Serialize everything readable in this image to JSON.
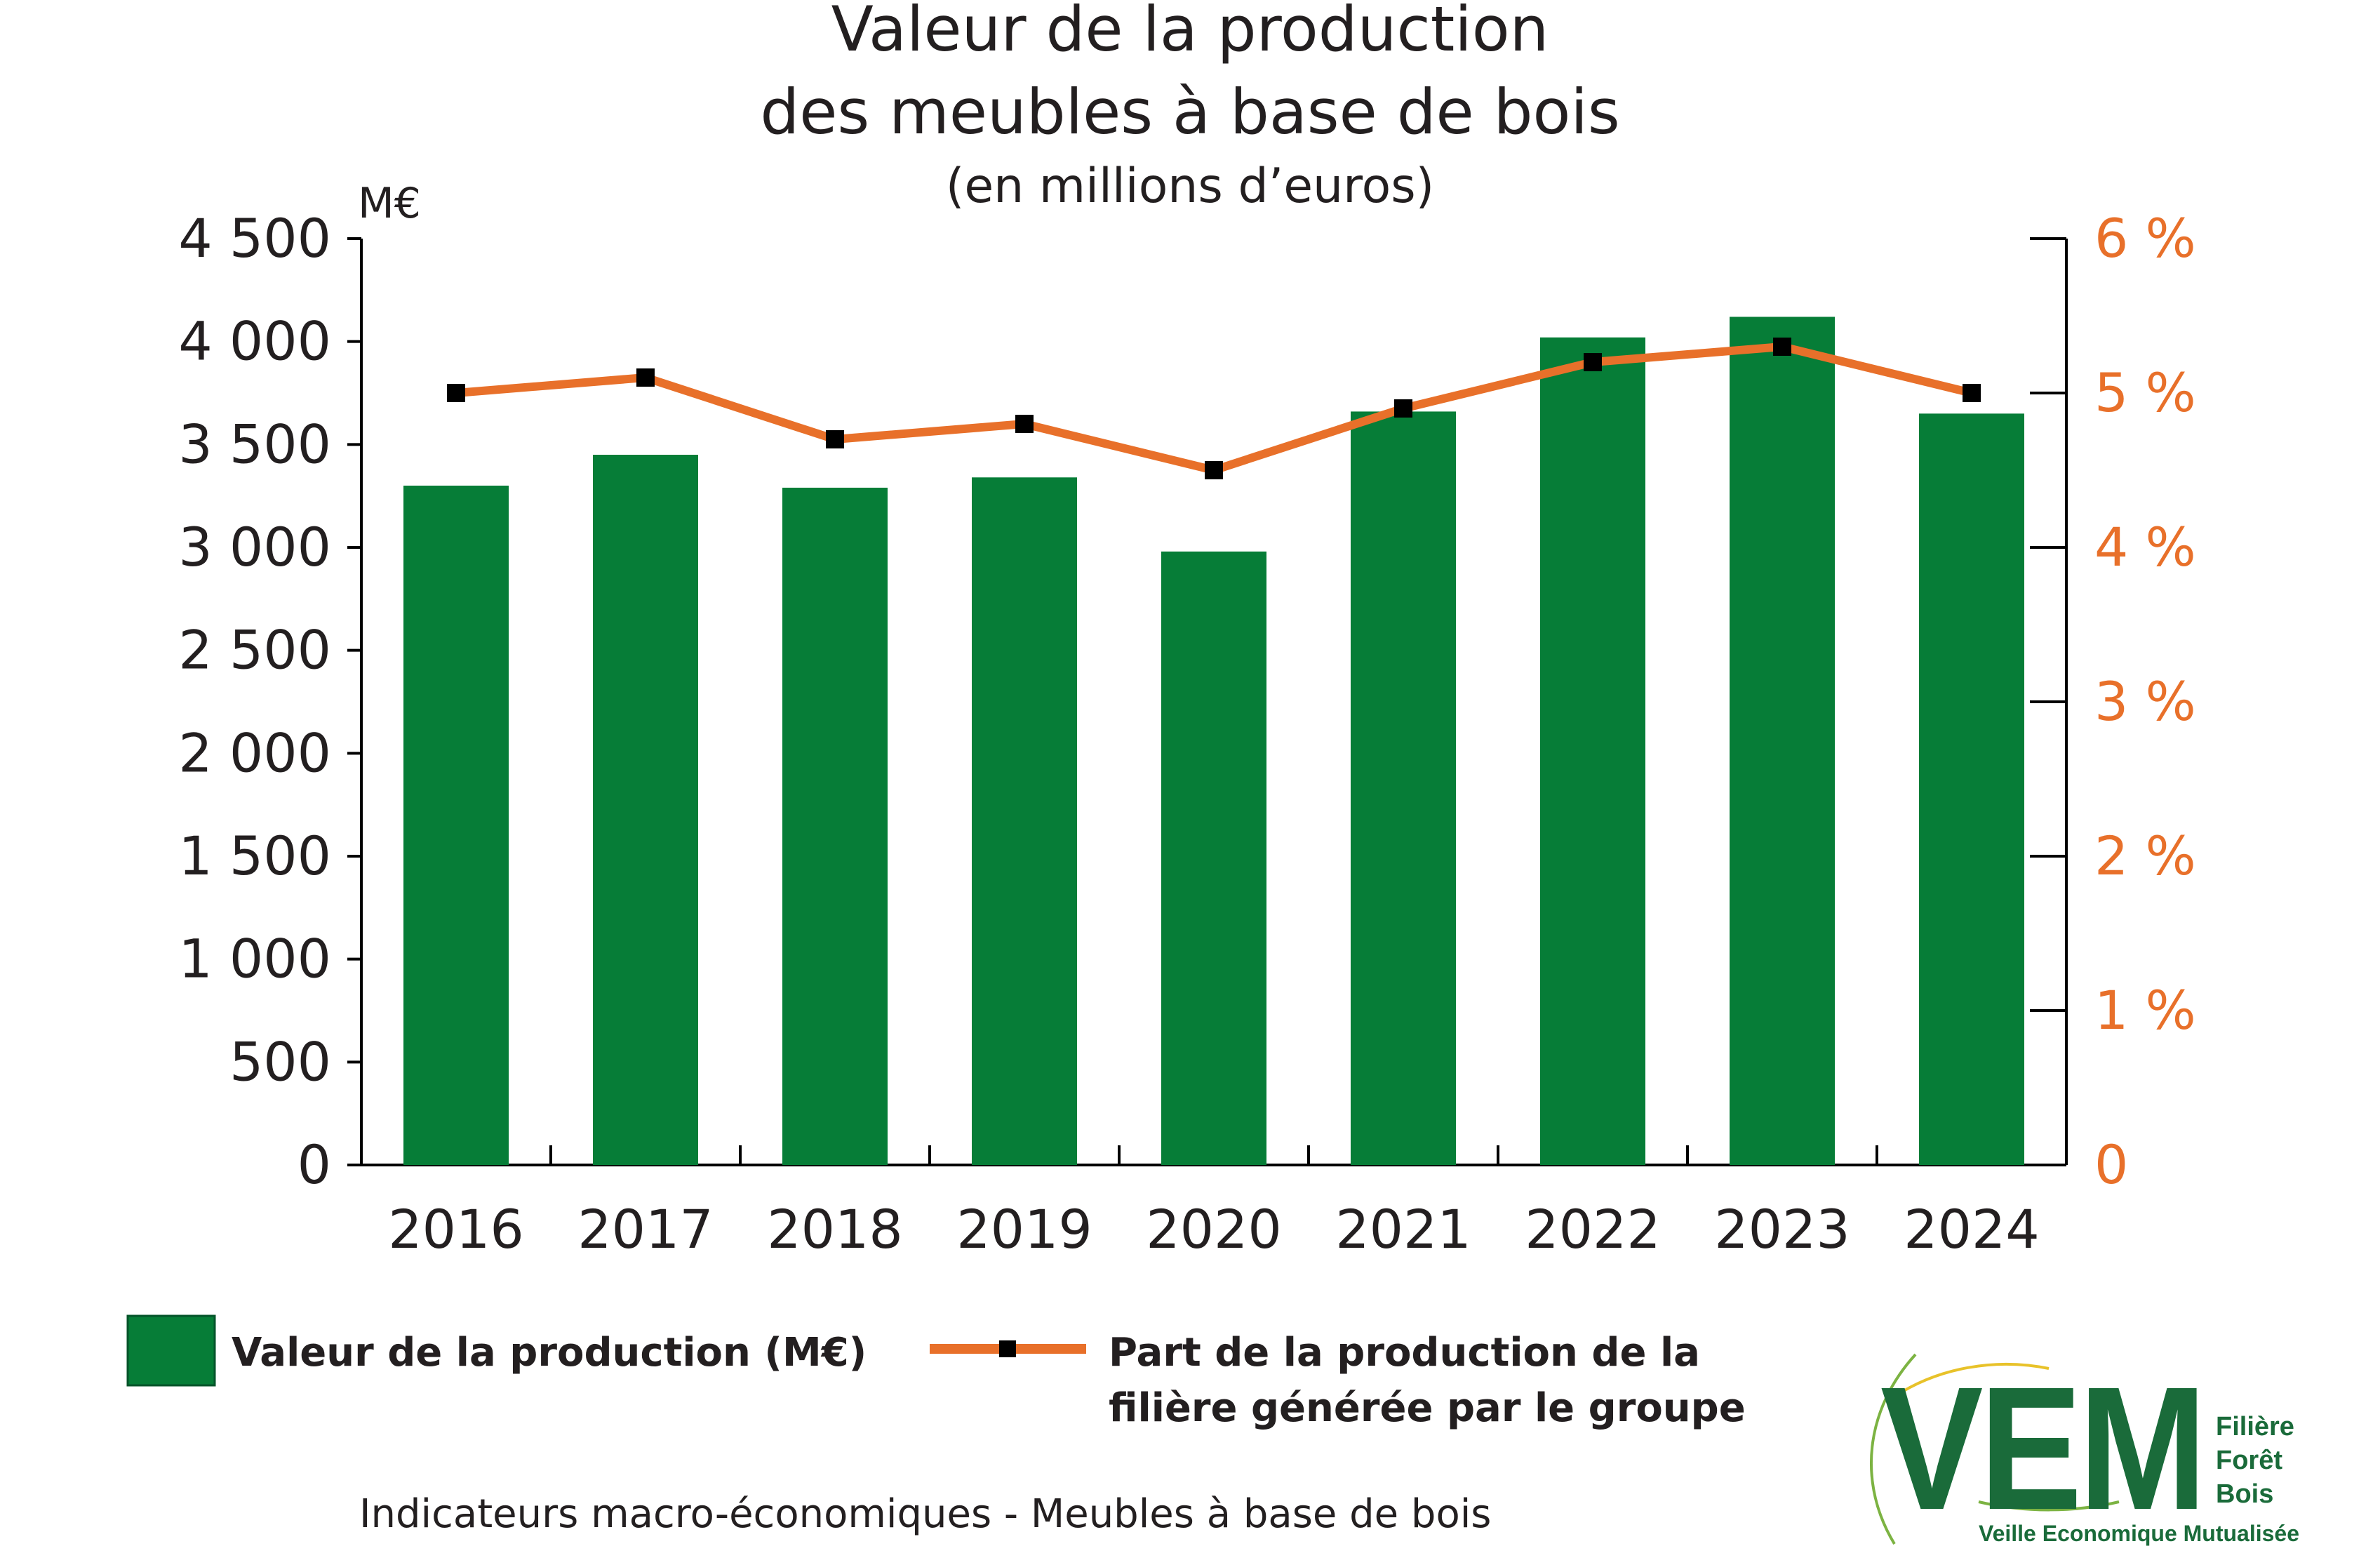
{
  "title_line1": "Valeur de la production",
  "title_line2": "des meubles à base de bois",
  "subtitle": "(en millions d’euros)",
  "left_unit": "M€",
  "legend": {
    "bar_label": "Valeur de la production (M€)",
    "line_label_1": "Part de la production de la",
    "line_label_2": "filière générée par le groupe"
  },
  "footer": "Indicateurs macro-économiques - Meubles à base de bois",
  "logo": {
    "mark": "VEM",
    "line1": "Filière",
    "line2": "Forêt",
    "line3": "Bois",
    "tagline": "Veille Economique Mutualisée"
  },
  "colors": {
    "bar": "#067d37",
    "line": "#e8702a",
    "marker": "#000000"
  },
  "chart_data": {
    "type": "bar",
    "categories": [
      "2016",
      "2017",
      "2018",
      "2019",
      "2020",
      "2021",
      "2022",
      "2023",
      "2024"
    ],
    "series": [
      {
        "name": "Valeur de la production (M€)",
        "type": "bar",
        "axis": "left",
        "values": [
          3300,
          3450,
          3290,
          3340,
          2980,
          3660,
          4020,
          4120,
          3650
        ]
      },
      {
        "name": "Part de la production de la filière générée par le groupe",
        "type": "line",
        "axis": "right",
        "values": [
          5.0,
          5.1,
          4.7,
          4.8,
          4.5,
          4.9,
          5.2,
          5.3,
          5.0
        ]
      }
    ],
    "left_axis": {
      "min": 0,
      "max": 4500,
      "ticks": [
        "0",
        "500",
        "1 000",
        "1 500",
        "2 000",
        "2 500",
        "3 000",
        "3 500",
        "4 000",
        "4 500"
      ]
    },
    "right_axis": {
      "min": 0,
      "max": 6,
      "ticks": [
        "0",
        "1 %",
        "2 %",
        "3 %",
        "4 %",
        "5 %",
        "6 %"
      ]
    },
    "grid": false,
    "legend_position": "bottom-left"
  }
}
